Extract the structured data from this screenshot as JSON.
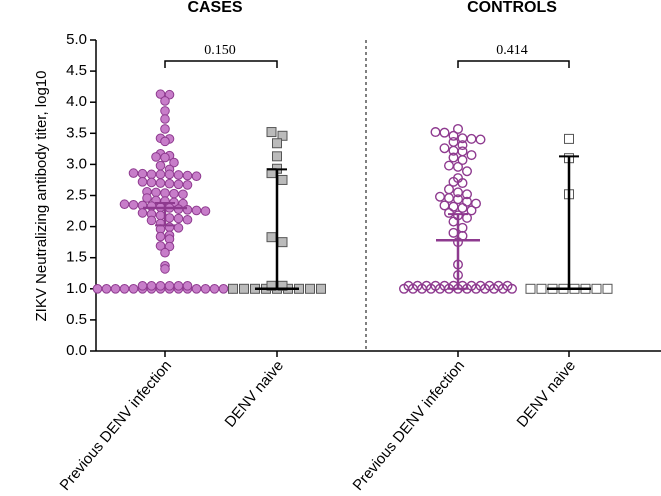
{
  "chart_data": {
    "type": "scatter",
    "ylabel": "ZIKV Neutralizing antibody titer, log10",
    "ylim": [
      0,
      5
    ],
    "yticks": [
      "0.0",
      "0.5",
      "1.0",
      "1.5",
      "2.0",
      "2.5",
      "3.0",
      "3.5",
      "4.0",
      "4.5",
      "5.0"
    ],
    "panels": [
      {
        "title": "CASES",
        "comparison_p": "0.150",
        "groups": [
          {
            "label": "Previous DENV infection",
            "color": "#8e3a8f",
            "fill": "#c77dc9",
            "marker": "filled-circle",
            "median": 2.3,
            "iqr": [
              2.02,
              2.38
            ],
            "values": [
              4.13,
              4.12,
              4.02,
              3.86,
              3.73,
              3.57,
              3.42,
              3.41,
              3.37,
              3.17,
              3.14,
              3.12,
              3.11,
              3.03,
              2.98,
              2.92,
              2.86,
              2.85,
              2.84,
              2.84,
              2.84,
              2.83,
              2.82,
              2.81,
              2.72,
              2.71,
              2.7,
              2.69,
              2.68,
              2.67,
              2.56,
              2.55,
              2.54,
              2.53,
              2.52,
              2.46,
              2.42,
              2.41,
              2.39,
              2.37,
              2.36,
              2.35,
              2.34,
              2.33,
              2.31,
              2.3,
              2.28,
              2.27,
              2.26,
              2.25,
              2.22,
              2.2,
              2.18,
              2.14,
              2.13,
              2.11,
              2.1,
              2.05,
              1.99,
              1.98,
              1.96,
              1.86,
              1.84,
              1.8,
              1.69,
              1.68,
              1.58,
              1.37,
              1.32,
              1,
              1,
              1,
              1,
              1,
              1,
              1,
              1,
              1,
              1,
              1,
              1,
              1,
              1,
              1,
              1,
              1,
              1,
              1,
              1,
              1,
              1
            ]
          },
          {
            "label": "DENV naive",
            "color": "#000000",
            "fill": "#bbbbbb",
            "marker": "filled-square",
            "median": 1.0,
            "iqr": [
              1.0,
              2.92
            ],
            "values": [
              3.52,
              3.46,
              3.34,
              3.13,
              2.93,
              2.86,
              2.75,
              1.83,
              1.75,
              1,
              1,
              1,
              1,
              1,
              1,
              1,
              1,
              1,
              1,
              1
            ]
          }
        ]
      },
      {
        "title": "CONTROLS",
        "comparison_p": "0.414",
        "groups": [
          {
            "label": "Previous DENV infection",
            "color": "#8e3a8f",
            "fill": "none",
            "marker": "open-circle",
            "median": 1.78,
            "iqr": [
              1.0,
              2.2
            ],
            "values": [
              3.57,
              3.52,
              3.51,
              3.46,
              3.42,
              3.41,
              3.4,
              3.36,
              3.31,
              3.26,
              3.22,
              3.21,
              3.15,
              3.11,
              3.07,
              2.98,
              2.96,
              2.89,
              2.78,
              2.72,
              2.7,
              2.6,
              2.55,
              2.52,
              2.48,
              2.46,
              2.44,
              2.4,
              2.37,
              2.34,
              2.32,
              2.3,
              2.26,
              2.22,
              2.18,
              2.14,
              2.08,
              1.98,
              1.9,
              1.85,
              1.75,
              1.39,
              1.22,
              1,
              1,
              1,
              1,
              1,
              1,
              1,
              1,
              1,
              1,
              1,
              1,
              1,
              1,
              1,
              1,
              1,
              1,
              1,
              1,
              1,
              1,
              1,
              1,
              1
            ]
          },
          {
            "label": "DENV naive",
            "color": "#000000",
            "fill": "none",
            "marker": "open-square",
            "median": 1.0,
            "iqr": [
              1.0,
              3.13
            ],
            "values": [
              3.41,
              3.1,
              2.52,
              1,
              1,
              1,
              1,
              1,
              1,
              1,
              1
            ]
          }
        ]
      }
    ]
  }
}
